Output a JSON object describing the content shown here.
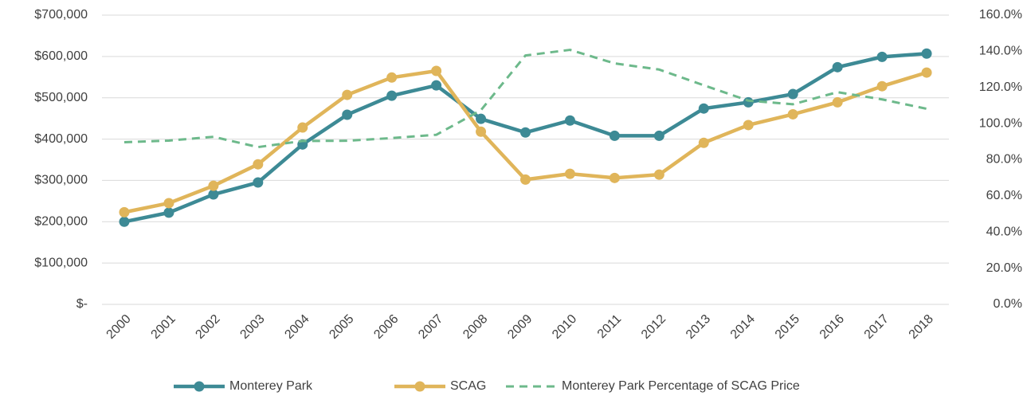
{
  "chart_data": {
    "type": "line",
    "categories": [
      "2000",
      "2001",
      "2002",
      "2003",
      "2004",
      "2005",
      "2006",
      "2007",
      "2008",
      "2009",
      "2010",
      "2011",
      "2012",
      "2013",
      "2014",
      "2015",
      "2016",
      "2017",
      "2018"
    ],
    "series": [
      {
        "name": "Monterey Park",
        "color": "#3d8a95",
        "marker": "circle",
        "values": [
          200000,
          222000,
          266000,
          295000,
          387000,
          459000,
          505000,
          530000,
          449000,
          416000,
          445000,
          408000,
          408000,
          474000,
          489000,
          509000,
          574000,
          599000,
          607000
        ]
      },
      {
        "name": "SCAG",
        "color": "#e0b55a",
        "marker": "circle",
        "values": [
          223000,
          245000,
          287000,
          339000,
          428000,
          507000,
          549000,
          565000,
          418000,
          302000,
          316000,
          306000,
          314000,
          391000,
          434000,
          460000,
          489000,
          528000,
          561000
        ]
      },
      {
        "name": "Monterey Park Percentage of SCAG Price",
        "color": "#6db98b",
        "dashed": true,
        "axis": "y2",
        "values": [
          89.7,
          90.6,
          92.7,
          87.0,
          90.4,
          90.5,
          92.0,
          93.8,
          107.4,
          137.7,
          140.8,
          133.3,
          129.9,
          121.2,
          112.7,
          110.7,
          117.4,
          113.4,
          108.2
        ]
      }
    ],
    "ylim": [
      0,
      700000
    ],
    "yticks": [
      {
        "value": 0,
        "label": "$-"
      },
      {
        "value": 100000,
        "label": "$100,000"
      },
      {
        "value": 200000,
        "label": "$200,000"
      },
      {
        "value": 300000,
        "label": "$300,000"
      },
      {
        "value": 400000,
        "label": "$400,000"
      },
      {
        "value": 500000,
        "label": "$500,000"
      },
      {
        "value": 600000,
        "label": "$600,000"
      },
      {
        "value": 700000,
        "label": "$700,000"
      }
    ],
    "y2lim": [
      0,
      160
    ],
    "y2ticks": [
      {
        "value": 0,
        "label": "0.0%"
      },
      {
        "value": 20,
        "label": "20.0%"
      },
      {
        "value": 40,
        "label": "40.0%"
      },
      {
        "value": 60,
        "label": "60.0%"
      },
      {
        "value": 80,
        "label": "80.0%"
      },
      {
        "value": 100,
        "label": "100.0%"
      },
      {
        "value": 120,
        "label": "120.0%"
      },
      {
        "value": 140,
        "label": "140.0%"
      },
      {
        "value": 160,
        "label": "160.0%"
      }
    ],
    "grid": true,
    "legend": "bottom"
  }
}
